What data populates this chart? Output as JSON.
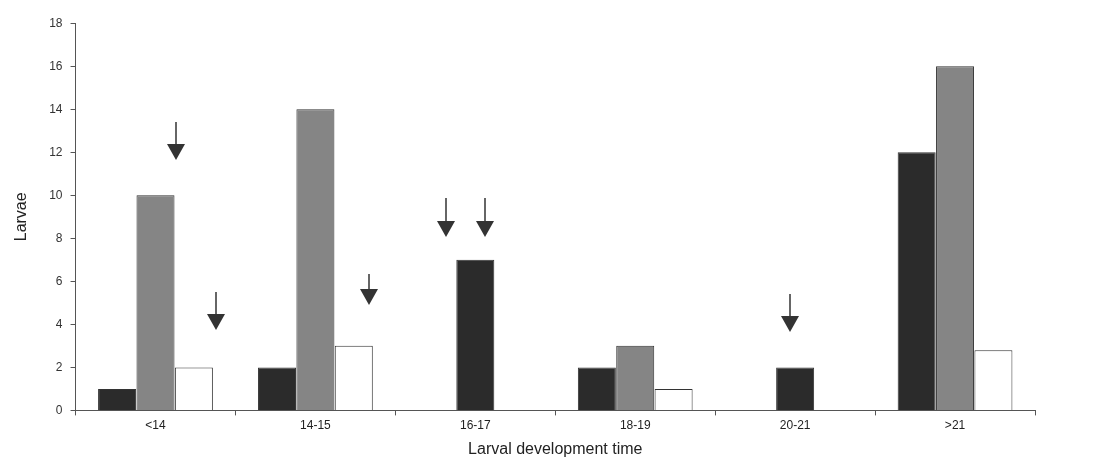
{
  "chart_data": {
    "type": "bar",
    "xlabel": "Larval development time",
    "ylabel": "Larvae",
    "categories": [
      "<14",
      "14-15",
      "16-17",
      "18-19",
      "20-21",
      ">21"
    ],
    "series": [
      {
        "color": "#2b2b2b",
        "values": [
          1,
          2,
          7,
          2,
          2,
          12
        ]
      },
      {
        "color": "#858585",
        "values": [
          10,
          14,
          null,
          3,
          null,
          16
        ]
      },
      {
        "color": "#ffffff",
        "values": [
          2,
          3,
          null,
          1,
          null,
          2.8
        ]
      }
    ],
    "ylim": [
      0,
      18
    ],
    "yticks": [
      0,
      2,
      4,
      6,
      8,
      10,
      12,
      14,
      16,
      18
    ],
    "grid": false,
    "legend": false
  }
}
